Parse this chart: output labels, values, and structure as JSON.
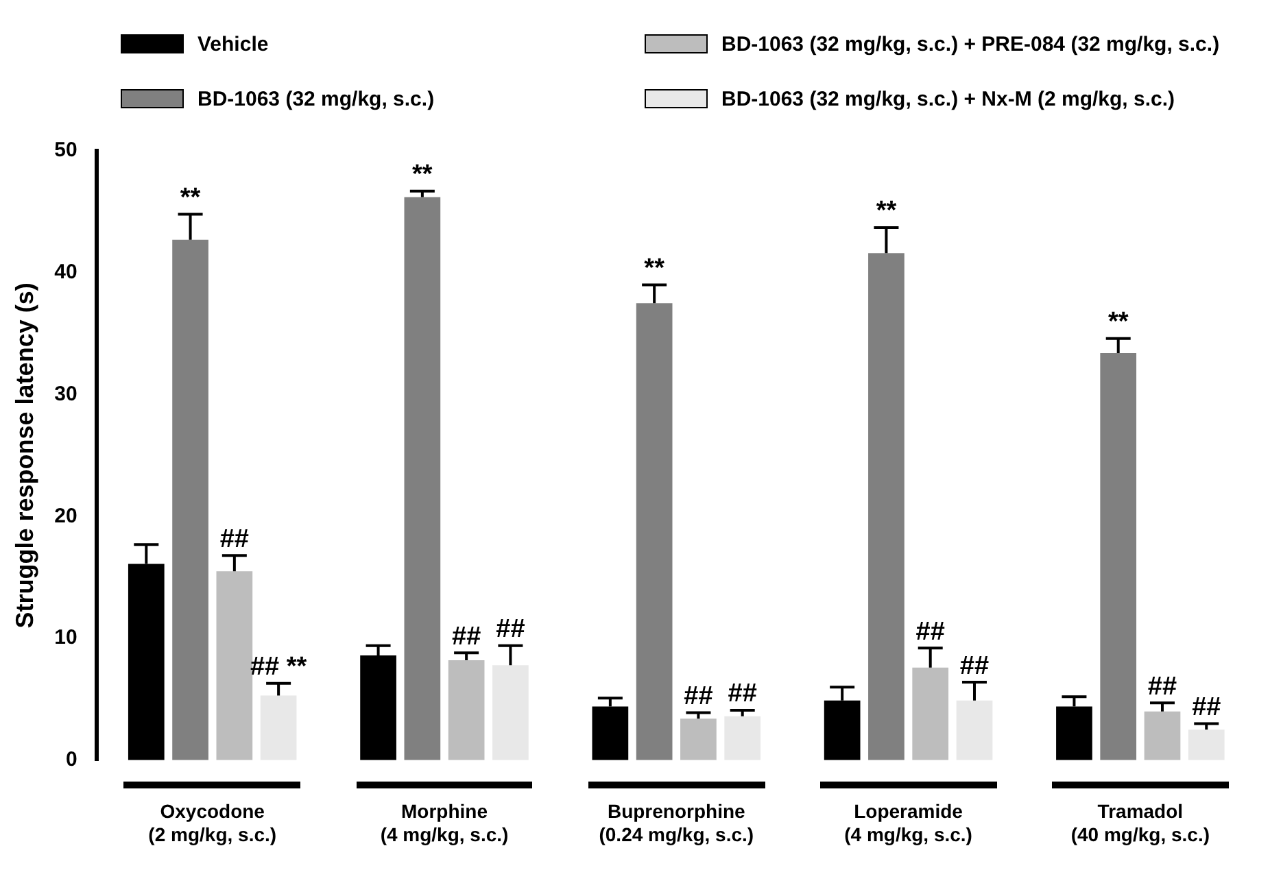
{
  "chart_data": {
    "type": "bar",
    "ylabel": "Struggle response latency (s)",
    "categories": [
      "Oxycodone\n(2 mg/kg, s.c.)",
      "Morphine\n(4 mg/kg, s.c.)",
      "Buprenorphine\n(0.24 mg/kg, s.c.)",
      "Loperamide\n(4 mg/kg, s.c.)",
      "Tramadol\n(40 mg/kg, s.c.)"
    ],
    "series": [
      {
        "name": "Vehicle",
        "color": "#000000",
        "values": [
          16.1,
          8.6,
          4.4,
          4.9,
          4.4
        ],
        "errors": [
          1.6,
          0.8,
          0.7,
          1.1,
          0.8
        ]
      },
      {
        "name": "BD-1063 (32 mg/kg, s.c.)",
        "color": "#808080",
        "values": [
          42.7,
          46.2,
          37.5,
          41.6,
          33.4
        ],
        "errors": [
          2.1,
          0.5,
          1.5,
          2.1,
          1.2
        ],
        "value_labels": [
          "**",
          "**",
          "**",
          "**",
          "**"
        ]
      },
      {
        "name": "BD-1063 (32 mg/kg, s.c.) + PRE-084 (32 mg/kg, s.c.)",
        "color": "#bdbdbd",
        "values": [
          15.5,
          8.2,
          3.4,
          7.6,
          4.0
        ],
        "errors": [
          1.3,
          0.6,
          0.5,
          1.6,
          0.7
        ],
        "value_labels": [
          "##",
          "##",
          "##",
          "##",
          "##"
        ]
      },
      {
        "name": "BD-1063 (32 mg/kg, s.c.) + Nx-M (2 mg/kg, s.c.)",
        "color": "#e8e8e8",
        "values": [
          5.3,
          7.8,
          3.6,
          4.9,
          2.5
        ],
        "errors": [
          1.0,
          1.6,
          0.5,
          1.5,
          0.5
        ],
        "value_labels": [
          "## **",
          "##",
          "##",
          "##",
          "##"
        ]
      }
    ],
    "ylim": [
      0,
      50
    ],
    "yticks": [
      0,
      10,
      20,
      30,
      40,
      50
    ],
    "legend": "top"
  }
}
